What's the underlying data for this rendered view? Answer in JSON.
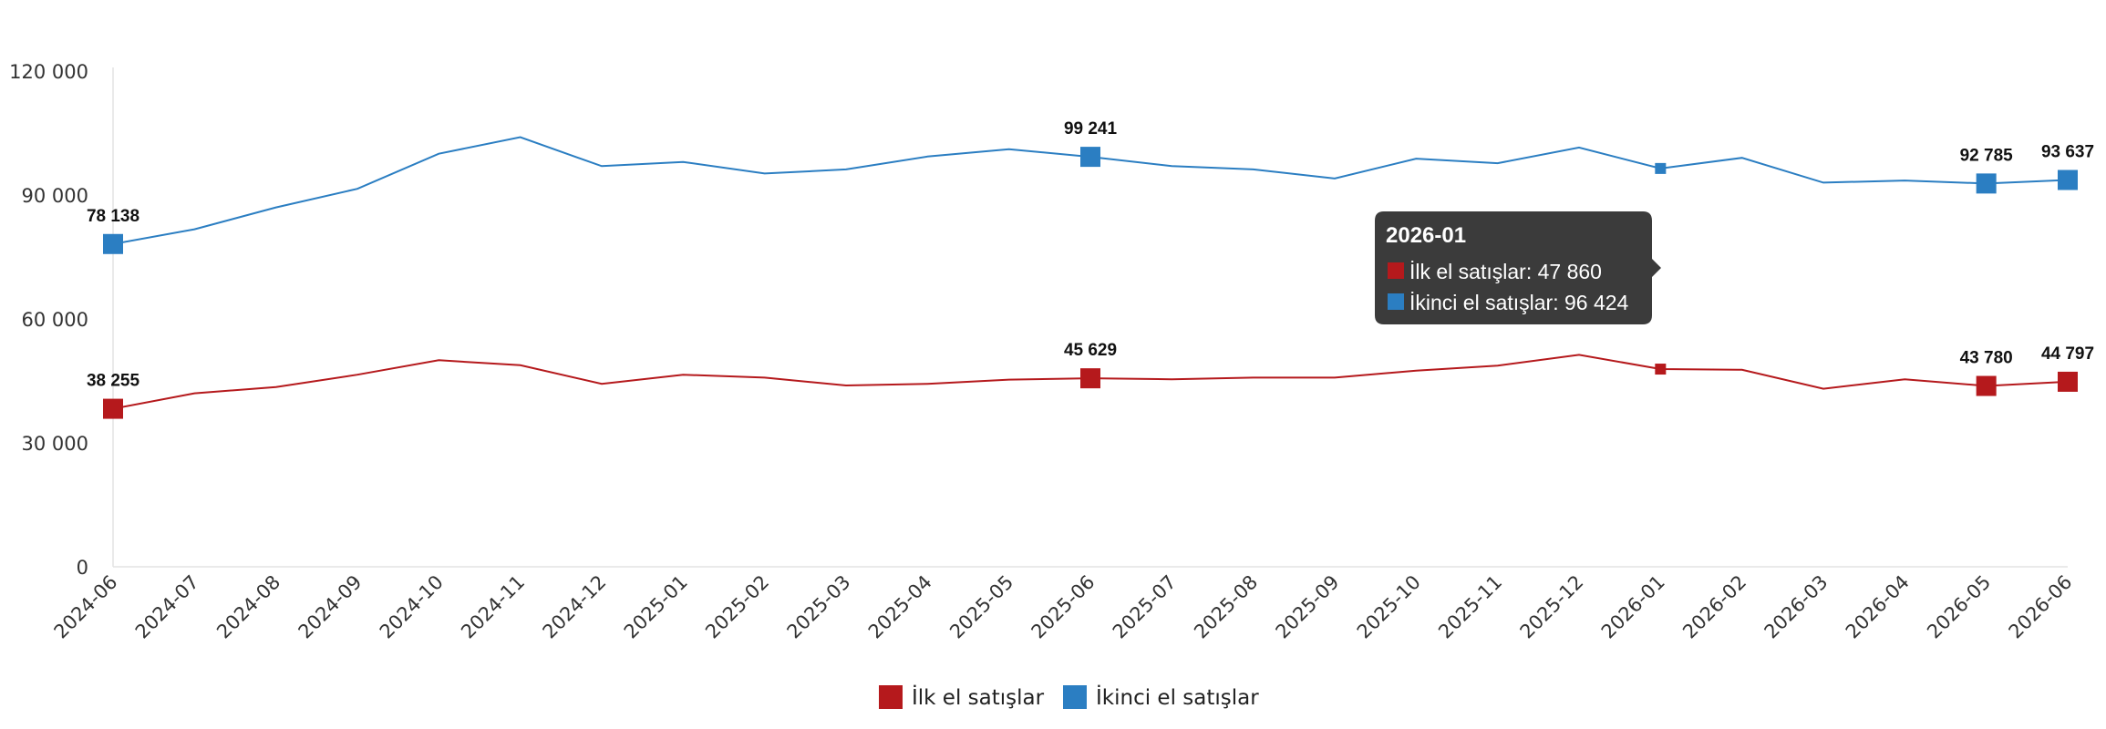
{
  "chart_data": {
    "type": "line",
    "categories": [
      "2024-06",
      "2024-07",
      "2024-08",
      "2024-09",
      "2024-10",
      "2024-11",
      "2024-12",
      "2025-01",
      "2025-02",
      "2025-03",
      "2025-04",
      "2025-05",
      "2025-06",
      "2025-07",
      "2025-08",
      "2025-09",
      "2025-10",
      "2025-11",
      "2025-12",
      "2026-01",
      "2026-02",
      "2026-03",
      "2026-04",
      "2026-05",
      "2026-06"
    ],
    "series": [
      {
        "name": "İlk el satışlar",
        "color": "#b5191c",
        "values": [
          38255,
          42000,
          43500,
          46500,
          50000,
          48800,
          44300,
          46500,
          45800,
          43900,
          44300,
          45300,
          45629,
          45400,
          45800,
          45800,
          47500,
          48700,
          51300,
          47860,
          47700,
          43100,
          45400,
          43780,
          44797
        ],
        "labeled_indices": [
          0,
          12,
          23,
          24
        ],
        "labels": [
          "38 255",
          "45 629",
          "43 780",
          "44 797"
        ]
      },
      {
        "name": "İkinci el satışlar",
        "color": "#2b7ec2",
        "values": [
          78138,
          81700,
          87000,
          91500,
          100000,
          104000,
          97000,
          98000,
          95200,
          96200,
          99300,
          101100,
          99241,
          97000,
          96200,
          94000,
          98800,
          97700,
          101500,
          96424,
          99000,
          93000,
          93500,
          92785,
          93637
        ],
        "labeled_indices": [
          0,
          12,
          23,
          24
        ],
        "labels": [
          "78 138",
          "99 241",
          "92 785",
          "93 637"
        ]
      }
    ],
    "y_ticks": [
      0,
      30000,
      60000,
      90000,
      120000
    ],
    "y_tick_labels": [
      "0",
      "30 000",
      "60 000",
      "90 000",
      "120 000"
    ],
    "ylim": [
      0,
      120000
    ],
    "grid": false,
    "legend": {
      "position": "bottom-center",
      "items": [
        {
          "label": "İlk el satışlar",
          "color": "#b5191c"
        },
        {
          "label": "İkinci el satışlar",
          "color": "#2b7ec2"
        }
      ]
    },
    "tooltip": {
      "category_index": 19,
      "title": "2026-01",
      "lines": [
        "İlk el satışlar: 47 860",
        "İkinci el satışlar: 96 424"
      ]
    }
  }
}
